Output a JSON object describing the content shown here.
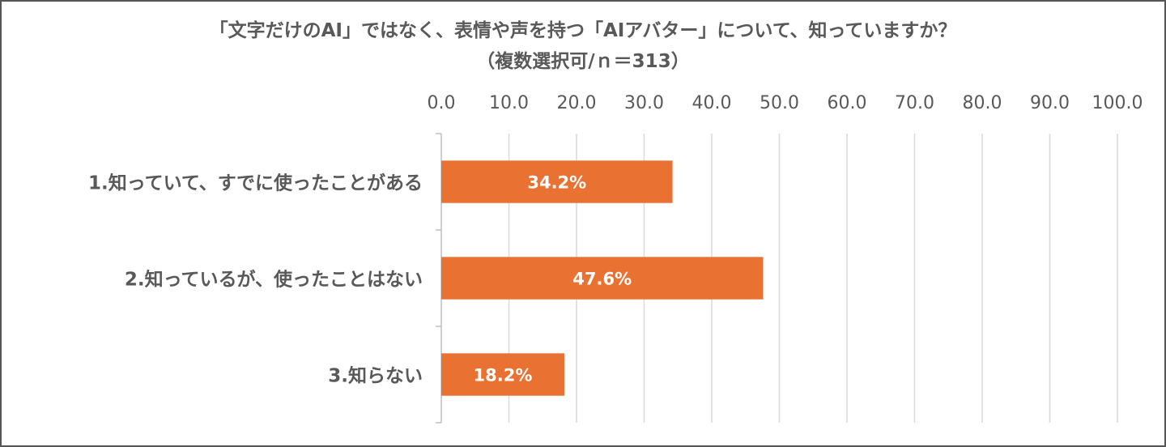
{
  "chart_data": {
    "type": "bar",
    "orientation": "horizontal",
    "title": "「文字だけのAI」ではなく、表情や声を持つ「AIアバター」について、知っていますか？",
    "subtitle": "（複数選択可/ｎ＝313）",
    "categories": [
      "1.知っていて、すでに使ったことがある",
      "2.知っているが、使ったことはない",
      "3.知らない"
    ],
    "values": [
      34.2,
      47.6,
      18.2
    ],
    "data_labels": [
      "34.2%",
      "47.6%",
      "18.2%"
    ],
    "xticks": [
      "0.0",
      "10.0",
      "20.0",
      "30.0",
      "40.0",
      "50.0",
      "60.0",
      "70.0",
      "80.0",
      "90.0",
      "100.0"
    ],
    "xlim": [
      0,
      100
    ],
    "axis_position": "top",
    "grid": true,
    "legend": "none",
    "bar_color": "#E97132"
  }
}
